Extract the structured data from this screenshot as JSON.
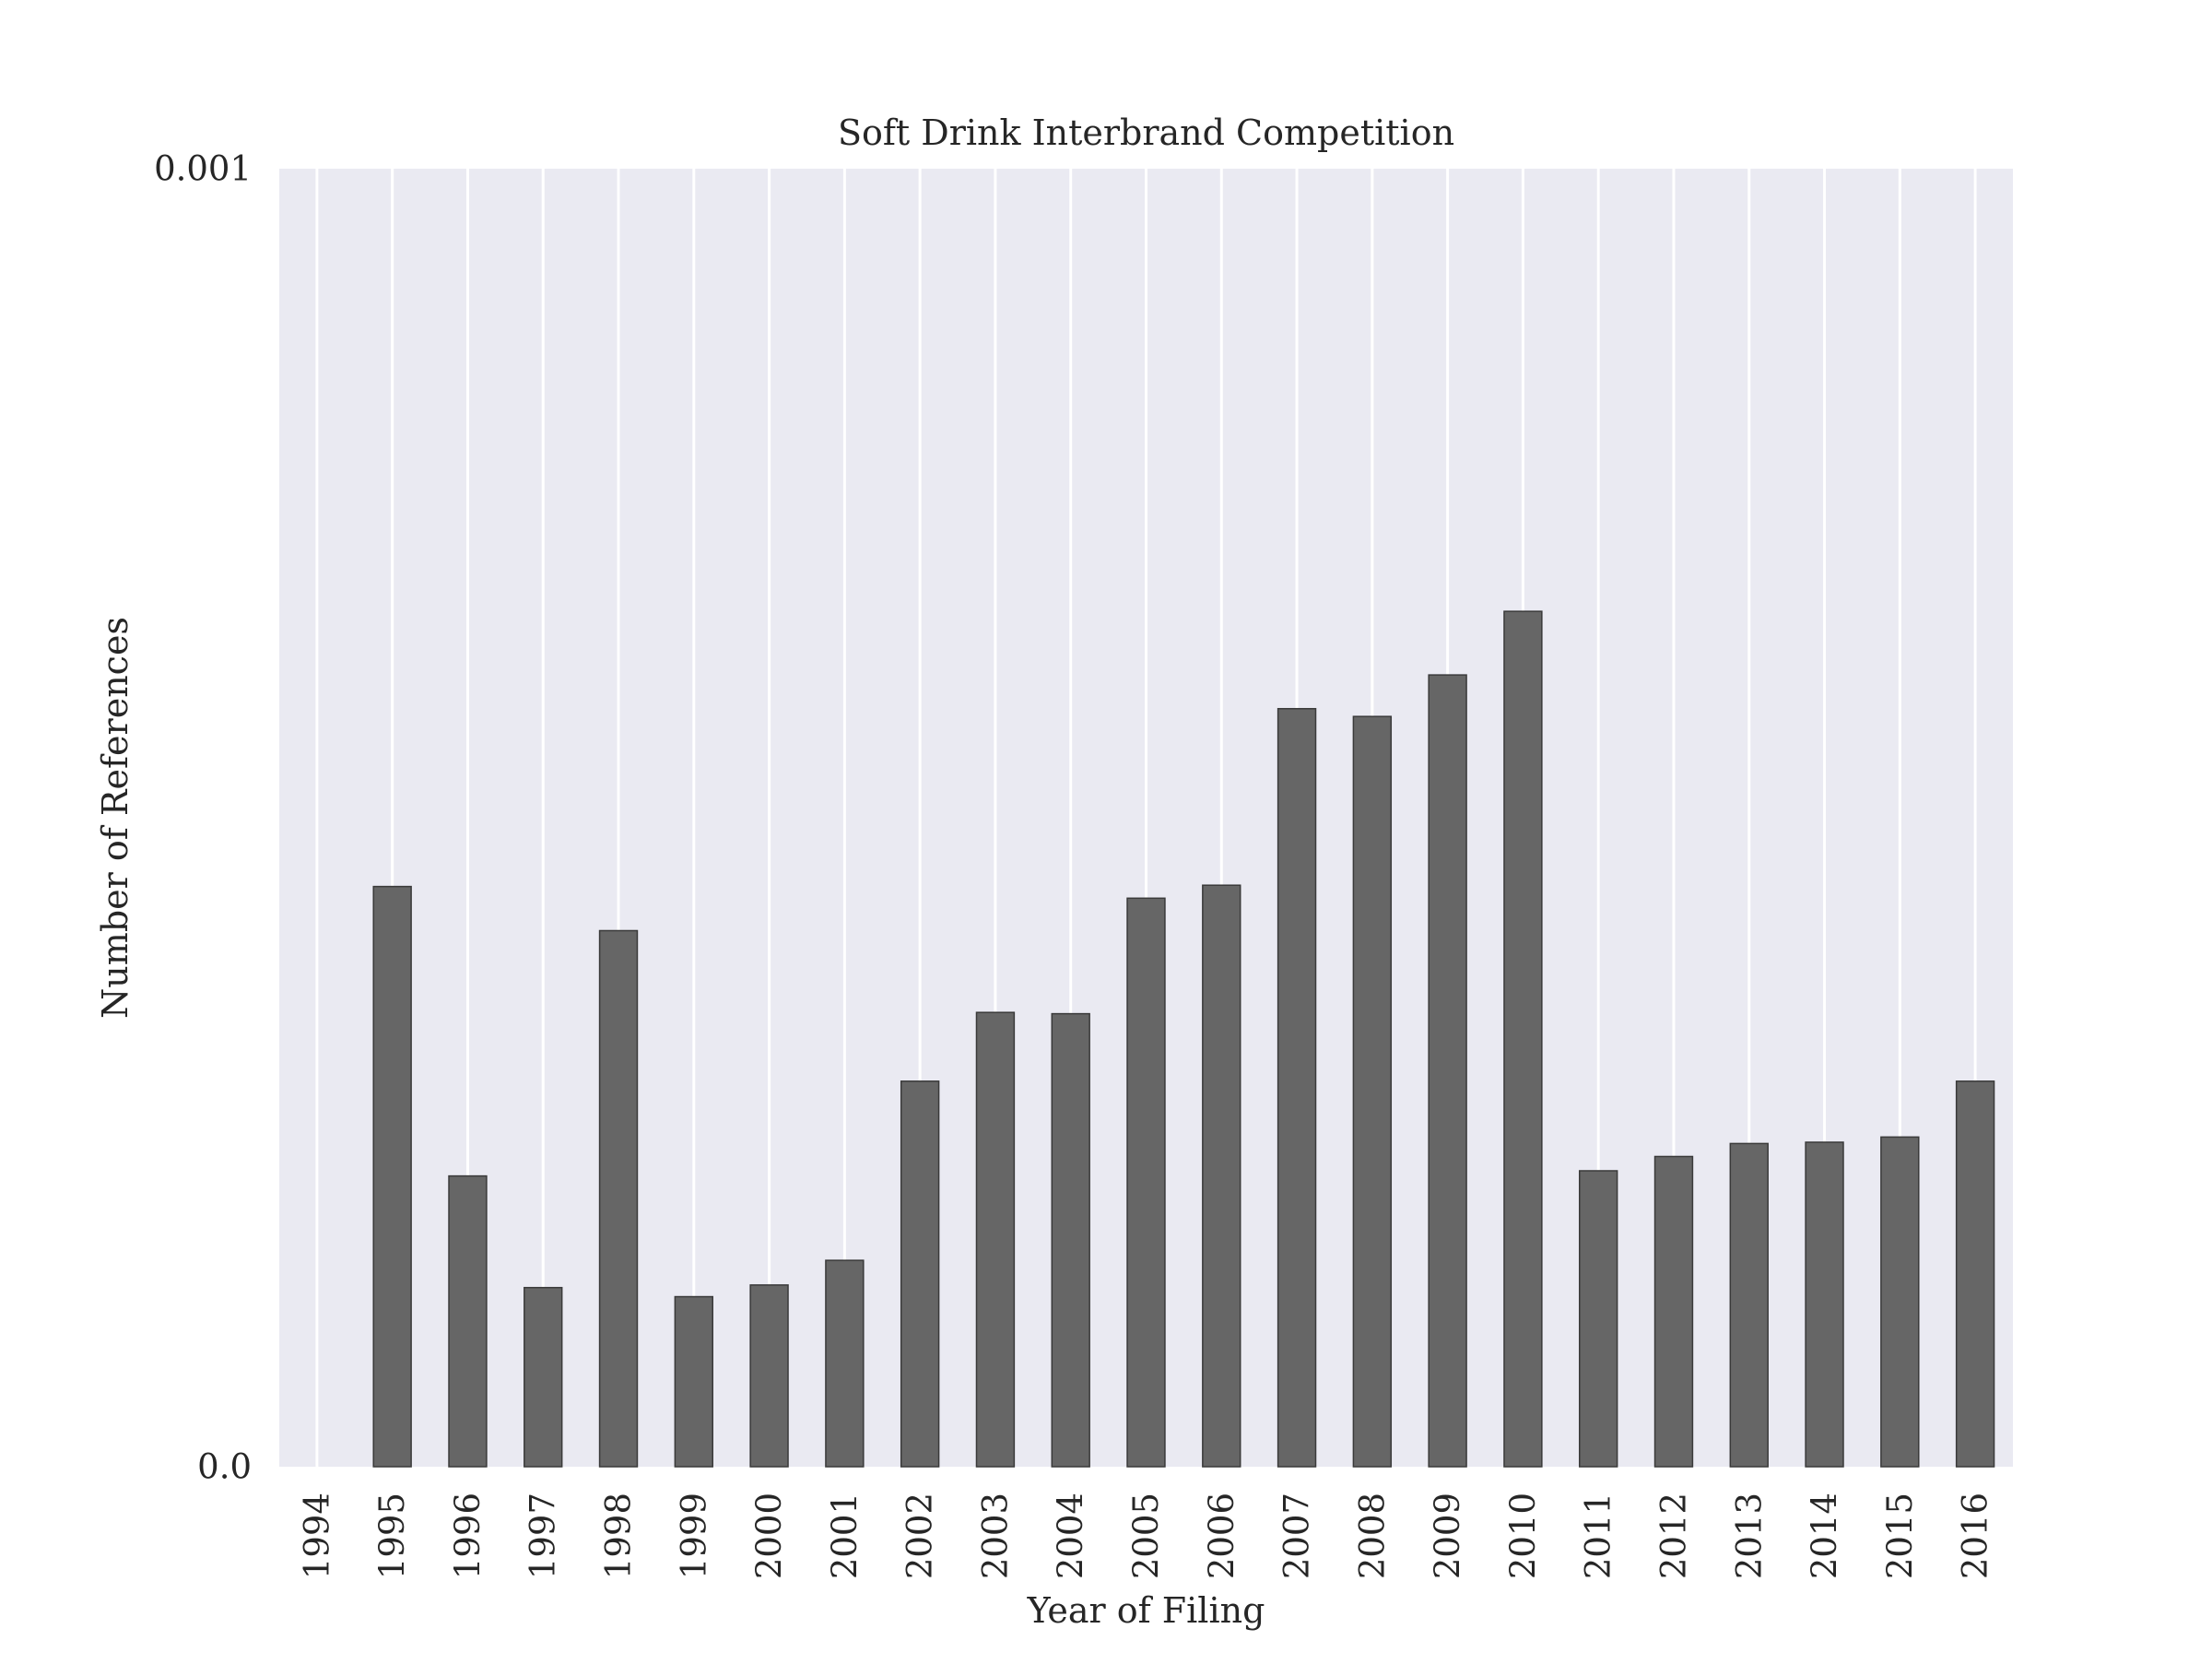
{
  "chart_data": {
    "type": "bar",
    "title": "Soft Drink Interbrand Competition",
    "xlabel": "Year of Filing",
    "ylabel": "Number of References",
    "categories": [
      "1994",
      "1995",
      "1996",
      "1997",
      "1998",
      "1999",
      "2000",
      "2001",
      "2002",
      "2003",
      "2004",
      "2005",
      "2006",
      "2007",
      "2008",
      "2009",
      "2010",
      "2011",
      "2012",
      "2013",
      "2014",
      "2015",
      "2016"
    ],
    "values": [
      0.0,
      0.000447,
      0.000224,
      0.000138,
      0.000413,
      0.000131,
      0.00014,
      0.000159,
      0.000297,
      0.00035,
      0.000349,
      0.000438,
      0.000448,
      0.000584,
      0.000578,
      0.00061,
      0.000659,
      0.000228,
      0.000239,
      0.000249,
      0.00025,
      0.000254,
      0.000297
    ],
    "ylim": [
      0.0,
      0.001
    ],
    "yticks": [
      "0.0",
      "0.001"
    ],
    "grid": "vertical",
    "colors": {
      "bar": "#666666",
      "bar_edge": "#3a3a3a",
      "plot_background": "#eaeaf2",
      "grid": "#ffffff"
    }
  }
}
